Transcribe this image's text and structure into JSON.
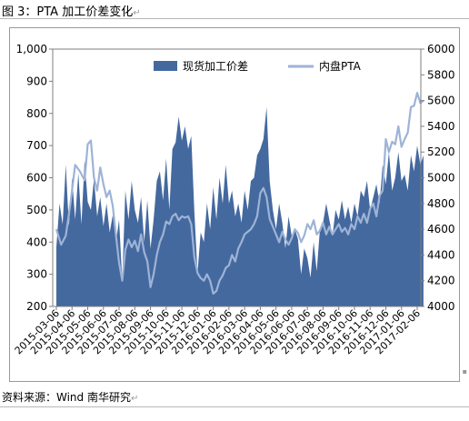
{
  "figure": {
    "title": "图 3：PTA 加工价差变化",
    "source": "资料来源：Wind 南华研究"
  },
  "chart_data": {
    "type": "area+line",
    "x_tick_labels": [
      "2015-03-06",
      "2015-04-06",
      "2015-05-06",
      "2015-06-06",
      "2015-07-06",
      "2015-08-06",
      "2015-09-06",
      "2015-10-06",
      "2015-11-06",
      "2015-12-06",
      "2016-01-06",
      "2016-02-06",
      "2016-03-06",
      "2016-04-06",
      "2016-05-06",
      "2016-06-06",
      "2016-07-06",
      "2016-08-06",
      "2016-09-06",
      "2016-10-06",
      "2016-11-06",
      "2016-12-06",
      "2017-01-06",
      "2017-02-06"
    ],
    "left_axis": {
      "ylim": [
        200,
        1000
      ],
      "ticks": [
        "200",
        "300",
        "400",
        "500",
        "600",
        "700",
        "800",
        "900",
        "1,000"
      ]
    },
    "right_axis": {
      "ylim": [
        4000,
        6000
      ],
      "ticks": [
        "4000",
        "4200",
        "4400",
        "4600",
        "4800",
        "5000",
        "5200",
        "5400",
        "5600",
        "5800",
        "6000"
      ]
    },
    "legend_position": "top-center",
    "series": [
      {
        "name": "现货加工价差",
        "type": "area",
        "axis": "left",
        "color": "#44699f",
        "points": [
          [
            0,
            385
          ],
          [
            0.2,
            520
          ],
          [
            0.4,
            455
          ],
          [
            0.6,
            640
          ],
          [
            0.8,
            450
          ],
          [
            1.0,
            600
          ],
          [
            1.2,
            470
          ],
          [
            1.4,
            615
          ],
          [
            1.6,
            455
          ],
          [
            1.8,
            655
          ],
          [
            2.0,
            525
          ],
          [
            2.2,
            500
          ],
          [
            2.4,
            595
          ],
          [
            2.6,
            480
          ],
          [
            2.8,
            540
          ],
          [
            3.0,
            450
          ],
          [
            3.2,
            520
          ],
          [
            3.4,
            430
          ],
          [
            3.6,
            485
          ],
          [
            3.8,
            400
          ],
          [
            4.0,
            470
          ],
          [
            4.2,
            280
          ],
          [
            4.4,
            560
          ],
          [
            4.6,
            470
          ],
          [
            4.8,
            590
          ],
          [
            5.0,
            500
          ],
          [
            5.2,
            460
          ],
          [
            5.4,
            540
          ],
          [
            5.6,
            400
          ],
          [
            5.8,
            530
          ],
          [
            6.0,
            380
          ],
          [
            6.2,
            470
          ],
          [
            6.4,
            590
          ],
          [
            6.6,
            620
          ],
          [
            6.8,
            530
          ],
          [
            7.0,
            660
          ],
          [
            7.2,
            500
          ],
          [
            7.4,
            690
          ],
          [
            7.6,
            710
          ],
          [
            7.8,
            790
          ],
          [
            8.0,
            715
          ],
          [
            8.2,
            760
          ],
          [
            8.4,
            690
          ],
          [
            8.6,
            730
          ],
          [
            8.8,
            490
          ],
          [
            9.0,
            305
          ],
          [
            9.2,
            430
          ],
          [
            9.4,
            400
          ],
          [
            9.6,
            520
          ],
          [
            9.8,
            440
          ],
          [
            10.0,
            570
          ],
          [
            10.2,
            470
          ],
          [
            10.4,
            600
          ],
          [
            10.6,
            520
          ],
          [
            10.8,
            640
          ],
          [
            11.0,
            520
          ],
          [
            11.2,
            560
          ],
          [
            11.4,
            480
          ],
          [
            11.6,
            520
          ],
          [
            11.8,
            460
          ],
          [
            12.0,
            560
          ],
          [
            12.2,
            500
          ],
          [
            12.4,
            590
          ],
          [
            12.6,
            600
          ],
          [
            12.8,
            670
          ],
          [
            13.0,
            690
          ],
          [
            13.2,
            720
          ],
          [
            13.4,
            820
          ],
          [
            13.6,
            590
          ],
          [
            13.8,
            500
          ],
          [
            14.0,
            440
          ],
          [
            14.2,
            520
          ],
          [
            14.4,
            460
          ],
          [
            14.6,
            380
          ],
          [
            14.8,
            480
          ],
          [
            15.0,
            420
          ],
          [
            15.2,
            440
          ],
          [
            15.4,
            410
          ],
          [
            15.6,
            300
          ],
          [
            15.8,
            380
          ],
          [
            16.0,
            350
          ],
          [
            16.2,
            290
          ],
          [
            16.4,
            400
          ],
          [
            16.6,
            310
          ],
          [
            16.8,
            440
          ],
          [
            17.0,
            460
          ],
          [
            17.2,
            520
          ],
          [
            17.4,
            470
          ],
          [
            17.6,
            420
          ],
          [
            17.8,
            500
          ],
          [
            18.0,
            470
          ],
          [
            18.2,
            530
          ],
          [
            18.4,
            470
          ],
          [
            18.6,
            510
          ],
          [
            18.8,
            460
          ],
          [
            19.0,
            520
          ],
          [
            19.2,
            480
          ],
          [
            19.4,
            560
          ],
          [
            19.6,
            540
          ],
          [
            19.8,
            590
          ],
          [
            20.0,
            500
          ],
          [
            20.2,
            540
          ],
          [
            20.4,
            580
          ],
          [
            20.6,
            520
          ],
          [
            20.8,
            640
          ],
          [
            21.0,
            580
          ],
          [
            21.2,
            680
          ],
          [
            21.4,
            560
          ],
          [
            21.6,
            600
          ],
          [
            21.8,
            680
          ],
          [
            22.0,
            590
          ],
          [
            22.2,
            610
          ],
          [
            22.4,
            560
          ],
          [
            22.6,
            670
          ],
          [
            22.8,
            620
          ],
          [
            23.0,
            700
          ],
          [
            23.2,
            640
          ],
          [
            23.4,
            670
          ]
        ]
      },
      {
        "name": "内盘PTA",
        "type": "line",
        "axis": "right",
        "color": "#9eb3d6",
        "points": [
          [
            0,
            4600
          ],
          [
            0.3,
            4480
          ],
          [
            0.6,
            4550
          ],
          [
            0.9,
            4800
          ],
          [
            1.2,
            5100
          ],
          [
            1.5,
            5050
          ],
          [
            1.8,
            4980
          ],
          [
            2.0,
            5260
          ],
          [
            2.2,
            5290
          ],
          [
            2.4,
            5000
          ],
          [
            2.6,
            4900
          ],
          [
            2.8,
            5080
          ],
          [
            3.0,
            4950
          ],
          [
            3.2,
            4850
          ],
          [
            3.4,
            4900
          ],
          [
            3.6,
            4780
          ],
          [
            3.8,
            4550
          ],
          [
            4.0,
            4340
          ],
          [
            4.2,
            4200
          ],
          [
            4.4,
            4440
          ],
          [
            4.6,
            4520
          ],
          [
            4.8,
            4460
          ],
          [
            5.0,
            4510
          ],
          [
            5.2,
            4430
          ],
          [
            5.4,
            4560
          ],
          [
            5.6,
            4420
          ],
          [
            5.8,
            4350
          ],
          [
            6.0,
            4150
          ],
          [
            6.2,
            4250
          ],
          [
            6.4,
            4400
          ],
          [
            6.6,
            4500
          ],
          [
            6.8,
            4560
          ],
          [
            7.0,
            4660
          ],
          [
            7.2,
            4640
          ],
          [
            7.4,
            4700
          ],
          [
            7.6,
            4720
          ],
          [
            7.8,
            4670
          ],
          [
            8.0,
            4700
          ],
          [
            8.2,
            4690
          ],
          [
            8.4,
            4700
          ],
          [
            8.6,
            4640
          ],
          [
            8.8,
            4380
          ],
          [
            9.0,
            4260
          ],
          [
            9.2,
            4220
          ],
          [
            9.4,
            4200
          ],
          [
            9.6,
            4250
          ],
          [
            9.8,
            4200
          ],
          [
            10.0,
            4100
          ],
          [
            10.2,
            4120
          ],
          [
            10.4,
            4200
          ],
          [
            10.6,
            4240
          ],
          [
            10.8,
            4300
          ],
          [
            11.0,
            4320
          ],
          [
            11.2,
            4400
          ],
          [
            11.4,
            4350
          ],
          [
            11.6,
            4450
          ],
          [
            11.8,
            4500
          ],
          [
            12.0,
            4560
          ],
          [
            12.2,
            4580
          ],
          [
            12.4,
            4600
          ],
          [
            12.6,
            4640
          ],
          [
            12.8,
            4700
          ],
          [
            13.0,
            4880
          ],
          [
            13.2,
            4920
          ],
          [
            13.4,
            4850
          ],
          [
            13.6,
            4680
          ],
          [
            13.8,
            4620
          ],
          [
            14.0,
            4560
          ],
          [
            14.2,
            4500
          ],
          [
            14.4,
            4580
          ],
          [
            14.6,
            4520
          ],
          [
            14.8,
            4480
          ],
          [
            15.0,
            4530
          ],
          [
            15.2,
            4600
          ],
          [
            15.4,
            4570
          ],
          [
            15.6,
            4500
          ],
          [
            15.8,
            4550
          ],
          [
            16.0,
            4640
          ],
          [
            16.2,
            4600
          ],
          [
            16.4,
            4670
          ],
          [
            16.6,
            4560
          ],
          [
            16.8,
            4590
          ],
          [
            17.0,
            4650
          ],
          [
            17.2,
            4560
          ],
          [
            17.4,
            4620
          ],
          [
            17.6,
            4560
          ],
          [
            17.8,
            4600
          ],
          [
            18.0,
            4640
          ],
          [
            18.2,
            4580
          ],
          [
            18.4,
            4610
          ],
          [
            18.6,
            4560
          ],
          [
            18.8,
            4640
          ],
          [
            19.0,
            4600
          ],
          [
            19.2,
            4700
          ],
          [
            19.4,
            4650
          ],
          [
            19.6,
            4720
          ],
          [
            19.8,
            4650
          ],
          [
            20.0,
            4760
          ],
          [
            20.2,
            4800
          ],
          [
            20.4,
            4700
          ],
          [
            20.6,
            4860
          ],
          [
            20.8,
            4900
          ],
          [
            21.0,
            5300
          ],
          [
            21.2,
            5200
          ],
          [
            21.4,
            5280
          ],
          [
            21.6,
            5260
          ],
          [
            21.8,
            5400
          ],
          [
            22.0,
            5240
          ],
          [
            22.2,
            5300
          ],
          [
            22.4,
            5350
          ],
          [
            22.6,
            5550
          ],
          [
            22.8,
            5560
          ],
          [
            23.0,
            5660
          ],
          [
            23.2,
            5580
          ],
          [
            23.4,
            5600
          ]
        ]
      }
    ]
  }
}
